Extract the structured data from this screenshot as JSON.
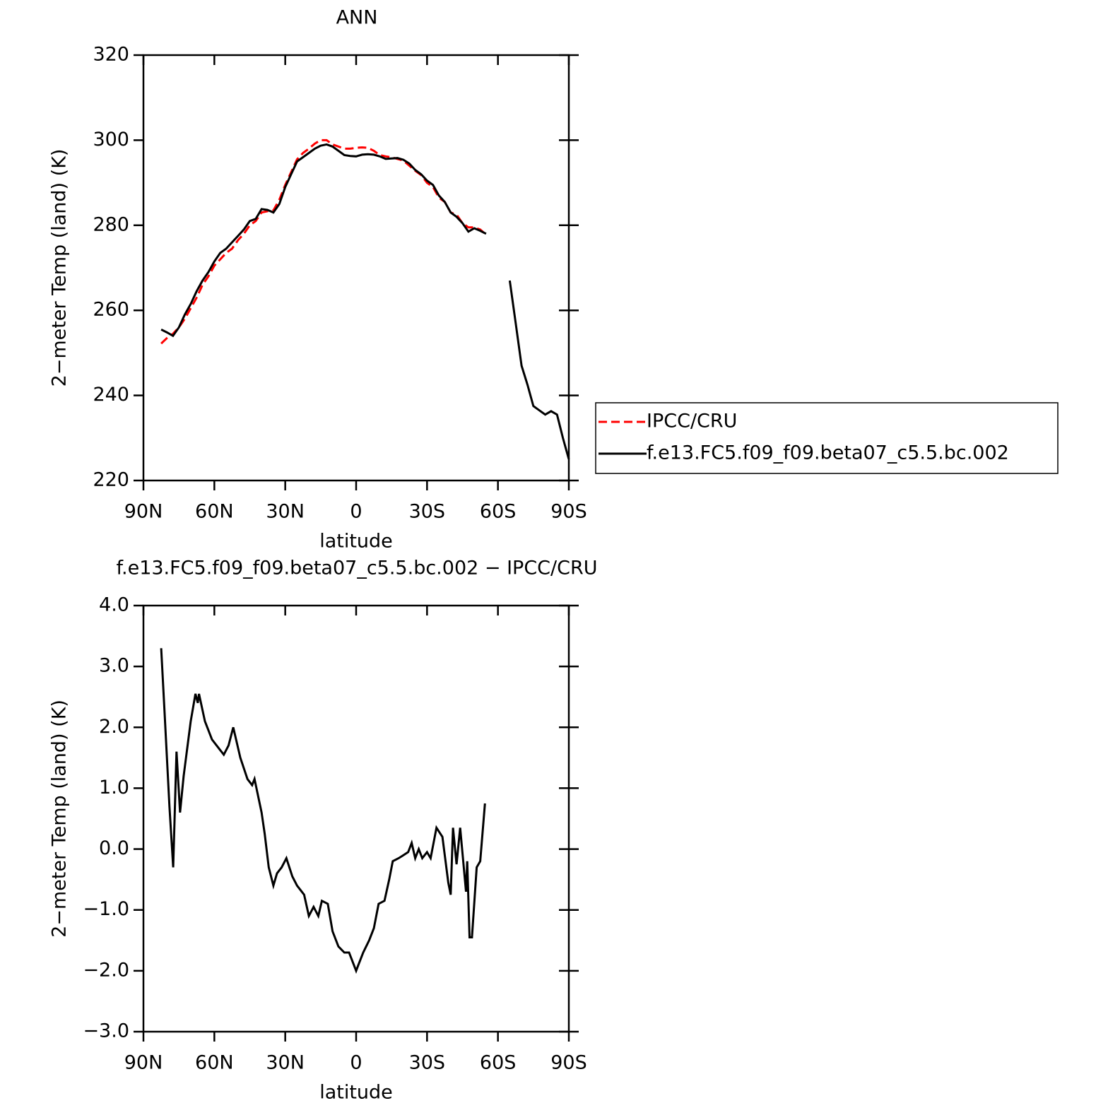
{
  "chart_data": [
    {
      "type": "line",
      "title": "ANN",
      "xlabel": "latitude",
      "ylabel": "2−meter Temp (land) (K)",
      "x": [
        82.5,
        80,
        77.5,
        75,
        72.5,
        70,
        67.5,
        65,
        62.5,
        60,
        57.5,
        55,
        52.5,
        50,
        47.5,
        45,
        42.5,
        40,
        37.5,
        35,
        32.5,
        30,
        27.5,
        25,
        22.5,
        20,
        17.5,
        15,
        12.5,
        10,
        7.5,
        5,
        2.5,
        0,
        -2.5,
        -5,
        -7.5,
        -10,
        -12.5,
        -15,
        -17.5,
        -20,
        -22.5,
        -25,
        -27.5,
        -30,
        -32.5,
        -35,
        -37.5,
        -40,
        -42.5,
        -45,
        -47.5,
        -50,
        -52.5,
        -55,
        -57.5,
        -60,
        -62.5,
        -65,
        -67.5,
        -70,
        -72.5,
        -75,
        -77.5,
        -80,
        -82.5,
        -85,
        -87.5,
        -90
      ],
      "series": [
        {
          "name": "IPCC/CRU",
          "color": "#ff0000",
          "dash": true,
          "values": [
            252.2,
            253.5,
            254.5,
            256,
            258,
            260.5,
            263,
            266,
            268,
            270.5,
            272,
            273.5,
            274.5,
            276.5,
            278,
            280,
            281,
            283,
            283.3,
            283.5,
            286,
            289.5,
            292.5,
            295.5,
            297,
            298,
            299.2,
            300,
            300,
            299,
            298.5,
            298,
            298,
            298.2,
            298.3,
            298.2,
            297.5,
            296.5,
            296.2,
            296,
            295.6,
            295.2,
            294,
            292.8,
            291.8,
            290,
            289,
            286.5,
            285.5,
            283,
            282.5,
            280.5,
            279.5,
            279.5,
            279,
            277.8,
            null,
            null,
            null,
            null,
            null,
            null,
            null,
            null,
            null,
            null,
            null,
            null,
            null,
            null
          ]
        },
        {
          "name": "f.e13.FC5.f09_f09.beta07_c5.5.bc.002",
          "color": "#000000",
          "dash": false,
          "values": [
            255.5,
            254.8,
            254,
            256,
            259,
            261.5,
            264.5,
            267,
            269,
            271.5,
            273.5,
            274.5,
            276,
            277.5,
            279,
            281,
            281.5,
            283.8,
            283.6,
            283,
            285,
            289,
            292,
            295,
            296,
            297,
            298,
            298.7,
            299,
            298.5,
            297.5,
            296.5,
            296.3,
            296.2,
            296.6,
            296.7,
            296.6,
            296.2,
            295.6,
            295.7,
            295.8,
            295.4,
            294.5,
            293,
            292,
            290.5,
            289.5,
            287,
            285.5,
            283,
            282,
            280.5,
            278.5,
            279.3,
            278.7,
            278,
            null,
            null,
            null,
            267,
            257,
            247,
            242.5,
            237.5,
            236.5,
            235.5,
            236.3,
            235.5,
            230,
            225
          ]
        }
      ],
      "xlim": [
        90,
        -90
      ],
      "xticks": [
        {
          "value": 90,
          "label": "90N"
        },
        {
          "value": 60,
          "label": "60N"
        },
        {
          "value": 30,
          "label": "30N"
        },
        0,
        {
          "value": -30,
          "label": "30S"
        },
        {
          "value": -60,
          "label": "60S"
        },
        {
          "value": -90,
          "label": "90S"
        }
      ],
      "ylim": [
        220,
        320
      ],
      "yticks": [
        220,
        240,
        260,
        280,
        300,
        320
      ],
      "legend": "right"
    },
    {
      "type": "line",
      "title": "f.e13.FC5.f09_f09.beta07_c5.5.bc.002 − IPCC/CRU",
      "xlabel": "latitude",
      "ylabel": "2−meter Temp (land) (K)",
      "x": [
        82.5,
        81,
        79,
        77.4,
        76,
        74.5,
        73,
        70,
        68,
        67,
        66.5,
        64,
        61,
        58,
        56,
        54,
        52,
        49,
        46,
        44,
        43,
        40,
        38.7,
        37,
        35,
        33.5,
        31.5,
        29.5,
        27,
        25,
        22,
        20,
        18,
        16,
        14.5,
        12,
        10,
        7.5,
        5,
        3,
        1.5,
        0,
        -1,
        -3,
        -5.5,
        -7.5,
        -9.5,
        -12,
        -14,
        -15.5,
        -18,
        -20,
        -22,
        -23.5,
        -25,
        -26.5,
        -28,
        -30,
        -31.5,
        -34,
        -36.5,
        -39,
        -40,
        -41,
        -42.5,
        -44,
        -46.5,
        -47,
        -48,
        -49,
        -51,
        -52.5,
        -54.5
      ],
      "series": [
        {
          "name": "f.e13.FC5.f09_f09.beta07_c5.5.bc.002 − IPCC/CRU",
          "color": "#000000",
          "dash": false,
          "values": [
            3.3,
            2.2,
            0.7,
            -0.3,
            1.6,
            0.6,
            1.2,
            2.1,
            2.55,
            2.4,
            2.55,
            2.1,
            1.8,
            1.65,
            1.55,
            1.7,
            2.0,
            1.5,
            1.15,
            1.05,
            1.15,
            0.6,
            0.25,
            -0.3,
            -0.6,
            -0.4,
            -0.3,
            -0.15,
            -0.45,
            -0.6,
            -0.75,
            -1.1,
            -0.95,
            -1.1,
            -0.85,
            -0.9,
            -1.35,
            -1.6,
            -1.7,
            -1.7,
            -1.85,
            -2.0,
            -1.9,
            -1.7,
            -1.5,
            -1.3,
            -0.9,
            -0.85,
            -0.5,
            -0.2,
            -0.15,
            -0.1,
            -0.05,
            0.1,
            -0.15,
            0.0,
            -0.15,
            -0.05,
            -0.15,
            0.35,
            0.2,
            -0.55,
            -0.75,
            0.35,
            -0.25,
            0.35,
            -0.7,
            -0.2,
            -1.45,
            -1.45,
            -0.3,
            -0.2,
            0.75
          ]
        }
      ],
      "xlim": [
        90,
        -90
      ],
      "xticks": [
        {
          "value": 90,
          "label": "90N"
        },
        {
          "value": 60,
          "label": "60N"
        },
        {
          "value": 30,
          "label": "30N"
        },
        0,
        {
          "value": -30,
          "label": "30S"
        },
        {
          "value": -60,
          "label": "60S"
        },
        {
          "value": -90,
          "label": "90S"
        }
      ],
      "ylim": [
        -3,
        4
      ],
      "yticks": [
        {
          "value": -3,
          "label": "−3.0"
        },
        {
          "value": -2,
          "label": "−2.0"
        },
        {
          "value": -1,
          "label": "−1.0"
        },
        {
          "value": 0,
          "label": "0.0"
        },
        {
          "value": 1,
          "label": "1.0"
        },
        {
          "value": 2,
          "label": "2.0"
        },
        {
          "value": 3,
          "label": "3.0"
        },
        {
          "value": 4,
          "label": "4.0"
        }
      ]
    }
  ]
}
